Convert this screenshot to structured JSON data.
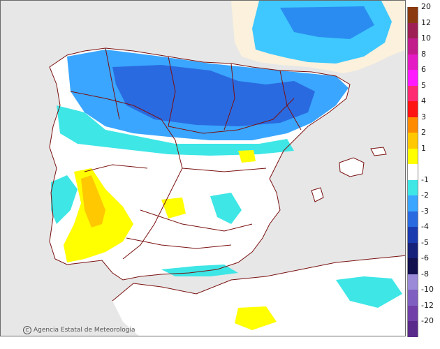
{
  "map": {
    "credit": "Agencia Estatal de Meteorología",
    "credit_symbol": "C",
    "colors": {
      "sea": "#e7e7e7",
      "land": "#ffffff",
      "border": "#7a1010"
    }
  },
  "legend": {
    "positive": [
      {
        "label": "20",
        "color": "#8b3a0f"
      },
      {
        "label": "12",
        "color": "#9e1f54"
      },
      {
        "label": "10",
        "color": "#c21c8c"
      },
      {
        "label": "8",
        "color": "#e41bc4"
      },
      {
        "label": "6",
        "color": "#ff1aff"
      },
      {
        "label": "5",
        "color": "#ff2a72"
      },
      {
        "label": "4",
        "color": "#ff1414"
      },
      {
        "label": "3",
        "color": "#ff8c00"
      },
      {
        "label": "2",
        "color": "#ffc800"
      },
      {
        "label": "1",
        "color": "#ffff00"
      }
    ],
    "neutral": {
      "color": "#ffffff"
    },
    "negative": [
      {
        "label": "-1",
        "color": "#3ee6e6"
      },
      {
        "label": "-2",
        "color": "#3aa6ff"
      },
      {
        "label": "-3",
        "color": "#2a6ae0"
      },
      {
        "label": "-4",
        "color": "#1a3ab0"
      },
      {
        "label": "-5",
        "color": "#15217a"
      },
      {
        "label": "-6",
        "color": "#12104e"
      },
      {
        "label": "-8",
        "color": "#9a8ad8"
      },
      {
        "label": "-10",
        "color": "#7f5fbf"
      },
      {
        "label": "-12",
        "color": "#7040a8"
      },
      {
        "label": "-20",
        "color": "#5a2a8a"
      }
    ]
  }
}
